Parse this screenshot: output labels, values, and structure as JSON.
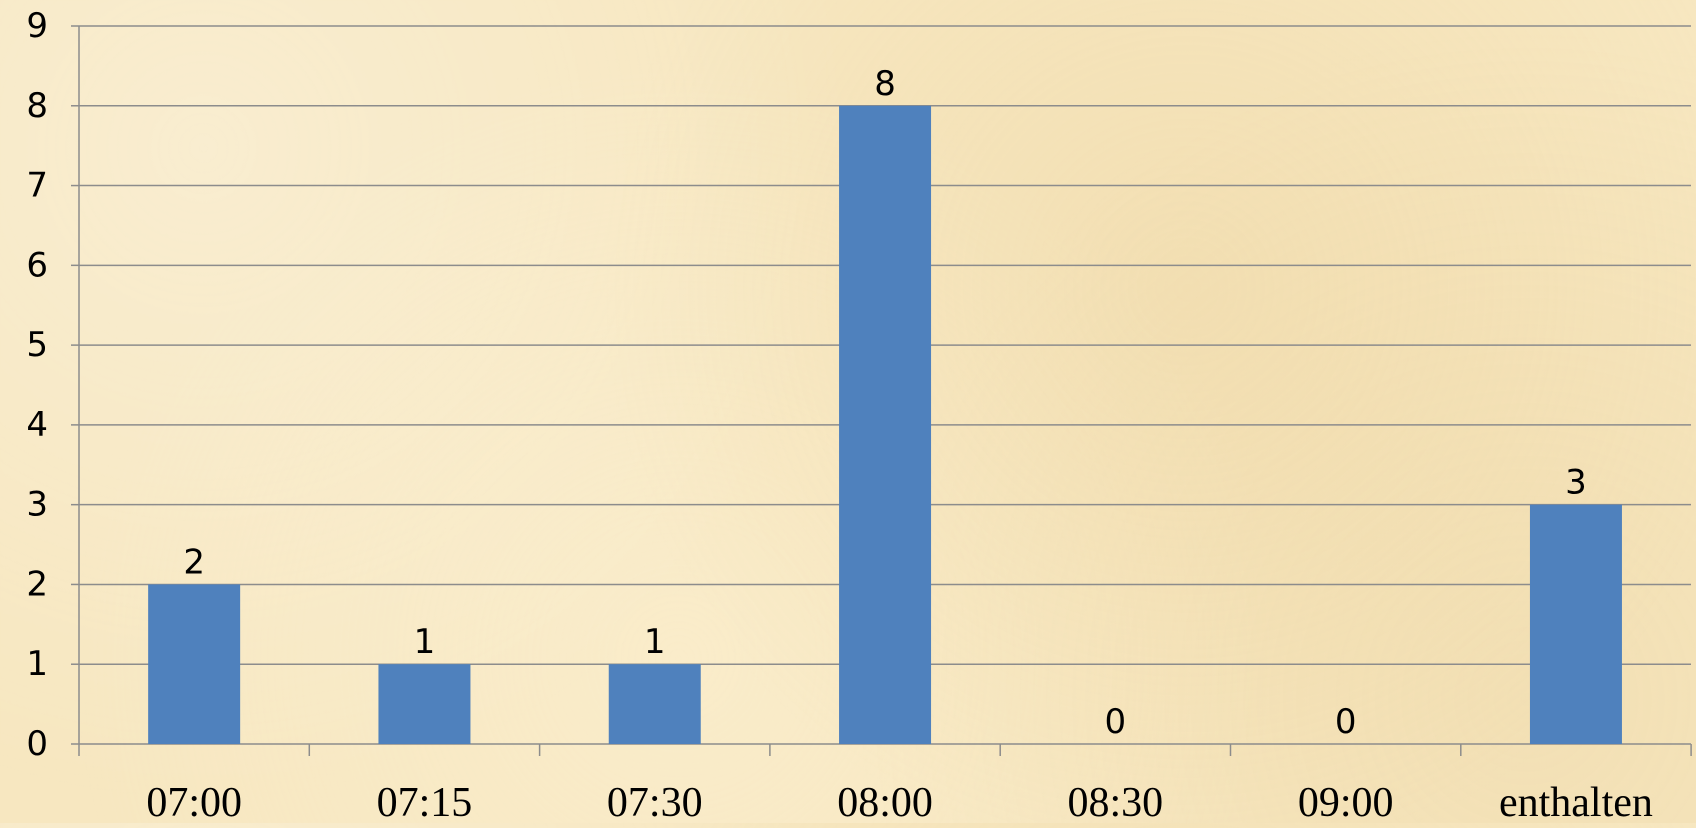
{
  "chart_data": {
    "type": "bar",
    "categories": [
      "07:00",
      "07:15",
      "07:30",
      "08:00",
      "08:30",
      "09:00",
      "enthalten"
    ],
    "values": [
      2,
      1,
      1,
      8,
      0,
      0,
      3
    ],
    "data_labels": [
      "2",
      "1",
      "1",
      "8",
      "0",
      "0",
      "3"
    ],
    "yticks": [
      "0",
      "1",
      "2",
      "3",
      "4",
      "5",
      "6",
      "7",
      "8",
      "9"
    ],
    "ylim": [
      0,
      9
    ],
    "grid": true,
    "legend": "none",
    "bar_color": "#4f81bd",
    "gridline_color": "#8c8c8c"
  }
}
